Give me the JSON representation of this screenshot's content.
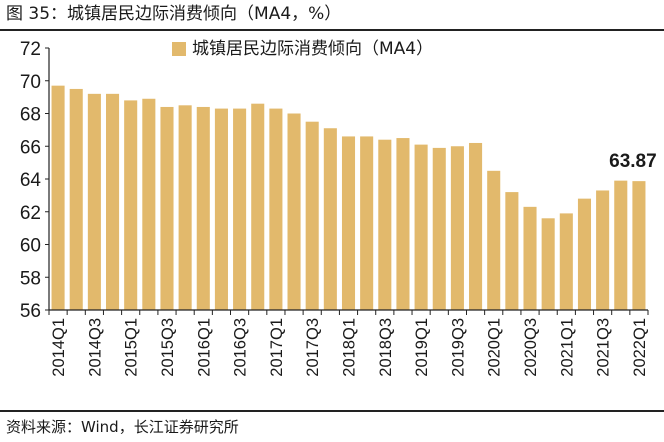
{
  "figure": {
    "title": "图 35：城镇居民边际消费倾向（MA4，%）",
    "source": "资料来源：Wind，长江证券研究所"
  },
  "colors": {
    "bar": "#E2B96C",
    "axis": "#222222"
  },
  "chart_data": {
    "type": "bar",
    "title": "",
    "xlabel": "",
    "ylabel": "",
    "ylim": [
      56,
      72
    ],
    "yticks": [
      56,
      58,
      60,
      62,
      64,
      66,
      68,
      70,
      72
    ],
    "grid": false,
    "legend": {
      "position": "top-center"
    },
    "categories": [
      "2014Q1",
      "2014Q2",
      "2014Q3",
      "2014Q4",
      "2015Q1",
      "2015Q2",
      "2015Q3",
      "2015Q4",
      "2016Q1",
      "2016Q2",
      "2016Q3",
      "2016Q4",
      "2017Q1",
      "2017Q2",
      "2017Q3",
      "2017Q4",
      "2018Q1",
      "2018Q2",
      "2018Q3",
      "2018Q4",
      "2019Q1",
      "2019Q2",
      "2019Q3",
      "2019Q4",
      "2020Q1",
      "2020Q2",
      "2020Q3",
      "2020Q4",
      "2021Q1",
      "2021Q2",
      "2021Q3",
      "2021Q4",
      "2022Q1"
    ],
    "tick_labels_shown": [
      "2014Q1",
      "2014Q3",
      "2015Q1",
      "2015Q3",
      "2016Q1",
      "2016Q3",
      "2017Q1",
      "2017Q3",
      "2018Q1",
      "2018Q3",
      "2019Q1",
      "2019Q3",
      "2020Q1",
      "2020Q3",
      "2021Q1",
      "2021Q3",
      "2022Q1"
    ],
    "series": [
      {
        "name": "城镇居民边际消费倾向（MA4）",
        "values": [
          69.7,
          69.5,
          69.2,
          69.2,
          68.8,
          68.9,
          68.4,
          68.5,
          68.4,
          68.3,
          68.3,
          68.6,
          68.3,
          68.0,
          67.5,
          67.1,
          66.6,
          66.6,
          66.4,
          66.5,
          66.1,
          65.9,
          66.0,
          66.2,
          64.5,
          63.2,
          62.3,
          61.6,
          61.9,
          62.8,
          63.3,
          63.9,
          63.87
        ]
      }
    ],
    "annotations": [
      {
        "category": "2022Q1",
        "text": "63.87"
      }
    ]
  }
}
